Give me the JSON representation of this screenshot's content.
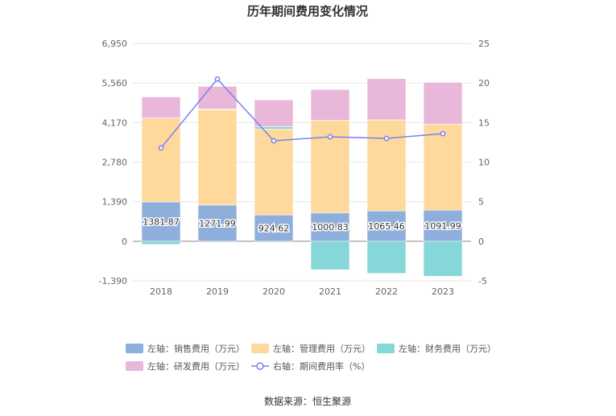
{
  "chart_data": {
    "type": "bar",
    "title": "历年期间费用变化情况",
    "categories": [
      "2018",
      "2019",
      "2020",
      "2021",
      "2022",
      "2023"
    ],
    "left_axis": {
      "min": -1390,
      "max": 6950,
      "ticks": [
        "-1,390",
        "0",
        "1,390",
        "2,780",
        "4,170",
        "5,560",
        "6,950"
      ]
    },
    "right_axis": {
      "min": -5,
      "max": 25,
      "ticks": [
        "-5",
        "0",
        "5",
        "10",
        "15",
        "20",
        "25"
      ]
    },
    "series": [
      {
        "name": "左轴：销售费用（万元）",
        "type": "bar",
        "stack": "a",
        "color": "#8eaedc",
        "values": [
          1381.87,
          1271.99,
          924.62,
          1000.83,
          1065.46,
          1091.99
        ],
        "labels": [
          "1381.87",
          "1271.99",
          "924.62",
          "1000.83",
          "1065.46",
          "1091.99"
        ]
      },
      {
        "name": "左轴：管理费用（万元）",
        "type": "bar",
        "stack": "a",
        "color": "#fed99b",
        "values": [
          2950,
          3350,
          3020,
          3250,
          3200,
          3020
        ]
      },
      {
        "name": "左轴：财务费用（万元）",
        "type": "bar",
        "stack": "a",
        "color": "#86d7d8",
        "values": [
          -110,
          20,
          80,
          -1000,
          -1130,
          -1230
        ]
      },
      {
        "name": "左轴：研发费用（万元）",
        "type": "bar",
        "stack": "a",
        "color": "#e8b7d9",
        "values": [
          740,
          800,
          940,
          1080,
          1450,
          1470
        ]
      },
      {
        "name": "右轴：期间费用率（%）",
        "type": "line",
        "axis": "right",
        "color": "#7b7ff0",
        "values": [
          11.8,
          20.5,
          12.7,
          13.2,
          13.0,
          13.6
        ]
      }
    ],
    "grid": true,
    "legend_position": "bottom"
  },
  "source": "数据来源：恒生聚源"
}
